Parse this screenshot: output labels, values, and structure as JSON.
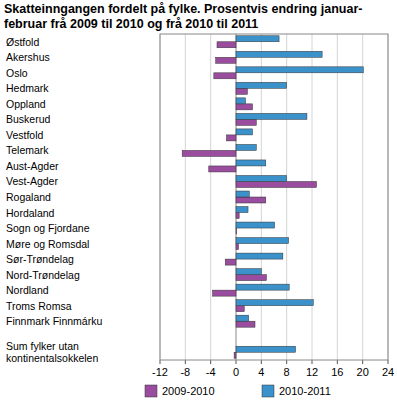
{
  "chart_data": {
    "type": "bar",
    "orientation": "horizontal",
    "title": "Skatteinngangen fordelt på fylke. Prosentvis endring januar-februar frå 2009 til 2010 og frå 2010 til 2011",
    "categories": [
      "Østfold",
      "Akershus",
      "Oslo",
      "Hedmark",
      "Oppland",
      "Buskerud",
      "Vestfold",
      "Telemark",
      "Aust-Agder",
      "Vest-Agder",
      "Rogaland",
      "Hordaland",
      "Sogn og Fjordane",
      "Møre og Romsdal",
      "Sør-Trøndelag",
      "Nord-Trøndelag",
      "Nordland",
      "Troms Romsa",
      "Finnmark Finnmárku",
      null,
      "Sum fylker utan kontinentalsokkelen"
    ],
    "series": [
      {
        "name": "2009-2010",
        "color": "#9a4c9e",
        "values": [
          -3.0,
          -3.2,
          -3.5,
          1.8,
          2.6,
          3.2,
          -1.5,
          -8.5,
          -4.3,
          12.7,
          4.7,
          0.5,
          0.1,
          0.4,
          -1.7,
          4.8,
          -3.7,
          1.3,
          3.0,
          null,
          -0.3
        ]
      },
      {
        "name": "2010-2011",
        "color": "#3b91c9",
        "values": [
          6.8,
          13.6,
          20.1,
          8.0,
          1.5,
          11.2,
          2.6,
          3.2,
          4.7,
          8.0,
          2.1,
          1.9,
          6.1,
          8.3,
          7.4,
          4.0,
          8.4,
          12.2,
          2.0,
          null,
          9.4
        ]
      }
    ],
    "xlim": [
      -12,
      24
    ],
    "xticks": [
      -12,
      -8,
      -4,
      0,
      4,
      8,
      12,
      16,
      20,
      24
    ],
    "grid": true,
    "legend": "bottom"
  }
}
